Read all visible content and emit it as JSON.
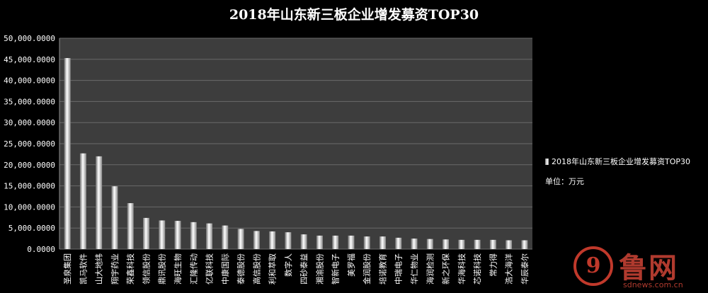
{
  "chart_data": {
    "type": "bar",
    "title": "2018年山东新三板企业增发募资TOP30",
    "legend": {
      "series_label": "2018年山东新三板企业增发募资TOP30",
      "unit": "单位：万元",
      "position": "right"
    },
    "ylim": [
      0,
      50000
    ],
    "ytick_step": 5000,
    "ytick_labels": [
      "0.0000",
      "5,000.0000",
      "10,000.0000",
      "15,000.0000",
      "20,000.0000",
      "25,000.0000",
      "30,000.0000",
      "35,000.0000",
      "40,000.0000",
      "45,000.0000",
      "50,000.0000"
    ],
    "grid": true,
    "categories": [
      "圣泉集团",
      "凯马软件",
      "山大地纬",
      "翔宇药业",
      "荣鑫科技",
      "领信股份",
      "鼎讯股份",
      "海旺生物",
      "汇隆传动",
      "亿联科技",
      "中康国际",
      "泰德股份",
      "高信股份",
      "利和萃取",
      "数字人",
      "四砂泰益",
      "湘渝股份",
      "智新电子",
      "美罗福",
      "金润股份",
      "培诺教育",
      "中瑞电子",
      "华仁物业",
      "海润检测",
      "新之环保",
      "华海科技",
      "芯诺科技",
      "常力得",
      "浩大海洋",
      "华辰泰尔"
    ],
    "values": [
      45300,
      22700,
      22000,
      14900,
      10900,
      7400,
      6800,
      6700,
      6400,
      6100,
      5600,
      4800,
      4300,
      4200,
      4000,
      3500,
      3200,
      3200,
      3200,
      3000,
      3000,
      2700,
      2500,
      2400,
      2300,
      2200,
      2200,
      2200,
      2100,
      2100
    ]
  },
  "watermark": {
    "logo_glyph": "9",
    "brand": "鲁网",
    "url": "sdnews.com.cn"
  },
  "colors": {
    "background": "#000000",
    "plot_bg": "#3d3d3d",
    "grid": "#6a6a6a",
    "bar_light": "#ffffff",
    "bar_dark": "#6e6e6e",
    "text": "#ffffff",
    "watermark": "#c0392b"
  }
}
